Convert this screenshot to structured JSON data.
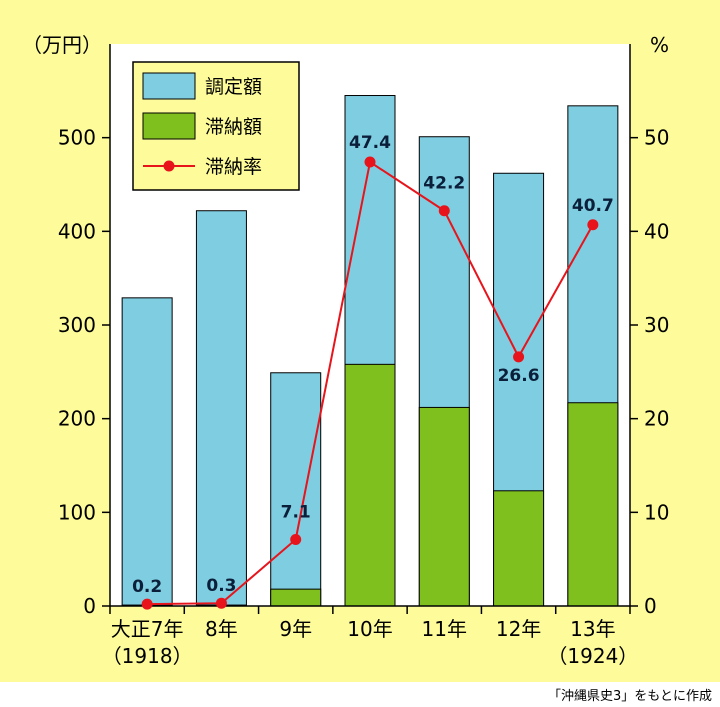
{
  "colors": {
    "background": "#fdfb9a",
    "assessed": "#7fcde0",
    "delinquent": "#7fc01f",
    "rate_line": "#e8141c",
    "label_text": "#0b1f3a"
  },
  "chart_data": {
    "type": "bar",
    "title": "",
    "xlabel": "",
    "left_unit": "（万円）",
    "right_unit": "%",
    "categories": [
      {
        "line1": "大正7年",
        "line2": "（1918）"
      },
      {
        "line1": "8年",
        "line2": ""
      },
      {
        "line1": "9年",
        "line2": ""
      },
      {
        "line1": "10年",
        "line2": ""
      },
      {
        "line1": "11年",
        "line2": ""
      },
      {
        "line1": "12年",
        "line2": ""
      },
      {
        "line1": "13年",
        "line2": "（1924）"
      }
    ],
    "ylim_left": [
      0,
      600
    ],
    "yticks_left": [
      0,
      100,
      200,
      300,
      400,
      500
    ],
    "ylim_right": [
      0,
      60
    ],
    "yticks_right": [
      0,
      10,
      20,
      30,
      40,
      50
    ],
    "series": [
      {
        "name": "調定額",
        "kind": "bar",
        "values": [
          329,
          422,
          249,
          545,
          501,
          462,
          534
        ]
      },
      {
        "name": "滞納額",
        "kind": "bar",
        "values": [
          1,
          1,
          18,
          258,
          212,
          123,
          217
        ]
      },
      {
        "name": "滞納率",
        "kind": "line",
        "axis": "right",
        "values": [
          0.2,
          0.3,
          7.1,
          47.4,
          42.2,
          26.6,
          40.7
        ],
        "labels": [
          "0.2",
          "0.3",
          "7.1",
          "47.4",
          "42.2",
          "26.6",
          "40.7"
        ]
      }
    ],
    "legend_position": "top-left",
    "grid": false
  },
  "source_note": "「沖縄県史3」をもとに作成"
}
